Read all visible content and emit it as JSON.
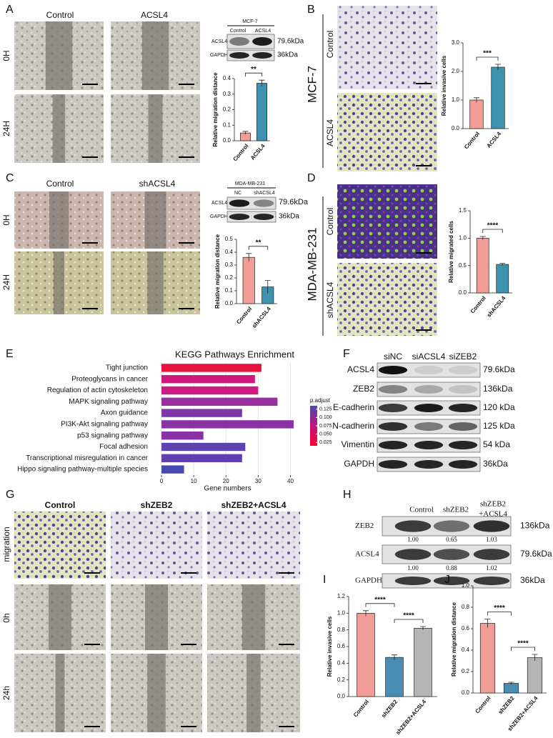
{
  "panels": {
    "A": {
      "letter": "A",
      "columns": [
        "Control",
        "ACSL4"
      ],
      "rows": [
        "0H",
        "24H"
      ],
      "blot": {
        "cell_line": "MCF-7",
        "lanes": [
          "Control",
          "ACSL4"
        ],
        "proteins": [
          "ACSL4",
          "GAPDH"
        ],
        "sizes": [
          "79.6kDa",
          "36kDa"
        ]
      }
    },
    "B": {
      "letter": "B",
      "cell_line": "MCF-7",
      "rows": [
        "Control",
        "ACSL4"
      ]
    },
    "C": {
      "letter": "C",
      "columns": [
        "Control",
        "shACSL4"
      ],
      "rows": [
        "0H",
        "24H"
      ],
      "blot": {
        "cell_line": "MDA-MB-231",
        "lanes": [
          "NC",
          "shACSL4"
        ],
        "proteins": [
          "ACSL4",
          "GAPDH"
        ],
        "sizes": [
          "79.6kDa",
          "36kDa"
        ]
      }
    },
    "D": {
      "letter": "D",
      "cell_line": "MDA-MB-231",
      "rows": [
        "Control",
        "shACSL4"
      ]
    },
    "E": {
      "letter": "E"
    },
    "F": {
      "letter": "F",
      "lanes": [
        "siNC",
        "siACSL4",
        "siZEB2"
      ],
      "proteins": [
        "ACSL4",
        "ZEB2",
        "E-cadherin",
        "N-cadherin",
        "Vimentin",
        "GAPDH"
      ],
      "sizes": [
        "79.6kDa",
        "136kDa",
        "120 kDa",
        "125 kDa",
        "54 kDa",
        "36kDa"
      ]
    },
    "G": {
      "letter": "G",
      "columns": [
        "Control",
        "shZEB2",
        "shZEB2+ACSL4"
      ],
      "rows": [
        "migration",
        "0h",
        "24h"
      ]
    },
    "H": {
      "letter": "H",
      "lanes": [
        [
          "Control"
        ],
        [
          "shZEB2"
        ],
        [
          "shZEB2",
          "+ACSL4"
        ]
      ],
      "proteins": [
        "ZEB2",
        "ACSL4",
        "GAPDH"
      ],
      "sizes": [
        "136kDa",
        "79.6kDa",
        "36kDa"
      ],
      "ratios": [
        [
          "1.00",
          "0.65",
          "1.03"
        ],
        [
          "1.00",
          "0.88",
          "1.02"
        ]
      ]
    },
    "I": {
      "letter": "I"
    },
    "J": {
      "letter": "J"
    }
  },
  "chart_data": [
    {
      "type": "bar",
      "ylabel": "Relative migration distance",
      "categories": [
        "Control",
        "ACSL4"
      ],
      "values": [
        0.05,
        0.37
      ],
      "errors": [
        0.01,
        0.02
      ],
      "colors": [
        "#f29c96",
        "#3d93ad"
      ],
      "ylim": [
        0,
        0.4
      ],
      "yticks": [
        {
          "value": 0,
          "label": "0.0"
        },
        0.1,
        0.2,
        0.3,
        0.4
      ],
      "annotations": [
        "**"
      ]
    },
    {
      "type": "bar",
      "ylabel": "Relative invasive cells",
      "categories": [
        "Control",
        "ACSL4"
      ],
      "values": [
        1.0,
        2.15
      ],
      "errors": [
        0.08,
        0.1
      ],
      "colors": [
        "#f29c96",
        "#3d93ad"
      ],
      "ylim": [
        0,
        3
      ],
      "yticks": [
        {
          "value": 0,
          "label": "0.0"
        },
        {
          "value": 1,
          "label": "1.0"
        },
        {
          "value": 2,
          "label": "2.0"
        },
        {
          "value": 3,
          "label": "3.0"
        }
      ],
      "annotations": [
        "***"
      ]
    },
    {
      "type": "bar",
      "ylabel": "Relative migration distance",
      "categories": [
        "Control",
        "shACSL4"
      ],
      "values": [
        0.36,
        0.13
      ],
      "errors": [
        0.03,
        0.05
      ],
      "colors": [
        "#f29c96",
        "#3d93ad"
      ],
      "ylim": [
        0,
        0.5
      ],
      "yticks": [
        {
          "value": 0,
          "label": "0.0"
        },
        0.1,
        0.2,
        0.3,
        0.4,
        0.5
      ],
      "annotations": [
        "**"
      ]
    },
    {
      "type": "bar",
      "ylabel": "Relative migrated cells",
      "categories": [
        "Control",
        "shACSL4"
      ],
      "values": [
        1.0,
        0.52
      ],
      "errors": [
        0.03,
        0.02
      ],
      "colors": [
        "#f29c96",
        "#3d93ad"
      ],
      "ylim": [
        0,
        1.5
      ],
      "yticks": [
        {
          "value": 0,
          "label": "0.0"
        },
        0.5,
        {
          "value": 1,
          "label": "1.0"
        },
        1.5
      ],
      "annotations": [
        "****"
      ]
    },
    {
      "type": "hbar",
      "title": "KEGG Pathways Enrichment",
      "xlabel": "Gene numbers",
      "categories": [
        "Tight junction",
        "Proteoglycans in cancer",
        "Regulation of  actin cytoskeleton",
        "MAPK signaling pathway",
        "Axon guidance",
        "PI3K-Akt signaling pathway",
        "p53 signaling pathway",
        "Focal adhesion",
        "Transcriptional misregulation in cancer",
        "Hippo signaling pathway-multiple species"
      ],
      "values": [
        31,
        29,
        30,
        36,
        25,
        41,
        13,
        26,
        25,
        7
      ],
      "colors": [
        "#e8123c",
        "#d0187c",
        "#cc1a82",
        "#9a2ea0",
        "#7c38a8",
        "#8a32a4",
        "#8a32a4",
        "#5c44b0",
        "#6040b0",
        "#4848b2"
      ],
      "label_colors": [
        "#e0201c",
        "#222222",
        "#222222",
        "#222222",
        "#222222",
        "#222222",
        "#222222",
        "#e0201c",
        "#222222",
        "#222222"
      ],
      "xlim": [
        -2,
        43
      ],
      "xticks": [
        0,
        10,
        20,
        30,
        40
      ],
      "grid": true,
      "colorbar": {
        "title": "p.adjust",
        "lim": [
          0.015,
          0.135
        ],
        "colors": [
          "#ff0033",
          "#c0147a",
          "#4b4aaa"
        ],
        "ticks": [
          0.125,
          {
            "value": 0.1,
            "label": "0.100"
          },
          0.075,
          {
            "value": 0.05,
            "label": "0.050"
          },
          0.025
        ]
      }
    },
    {
      "type": "bar",
      "ylabel": "Relative invasive cells",
      "categories": [
        "Control",
        "shZEB2",
        "shZEB2+ACSL4"
      ],
      "values": [
        1.0,
        0.47,
        0.82
      ],
      "errors": [
        0.03,
        0.03,
        0.02
      ],
      "colors": [
        "#f29c96",
        "#4a8db2",
        "#b4b4b4"
      ],
      "ylim": [
        0,
        1.2
      ],
      "yticks": [
        {
          "value": 0,
          "label": "0.0"
        },
        0.2,
        0.4,
        0.6,
        0.8,
        {
          "value": 1,
          "label": "1.0"
        },
        1.2
      ],
      "annotations": [
        "****",
        "****"
      ]
    },
    {
      "type": "bar",
      "ylabel": "Relative migration distance",
      "categories": [
        "Control",
        "shZEB2",
        "shZEB2+ACSL4"
      ],
      "values": [
        0.65,
        0.09,
        0.33
      ],
      "errors": [
        0.04,
        0.01,
        0.03
      ],
      "colors": [
        "#f29c96",
        "#4a8db2",
        "#b4b4b4"
      ],
      "ylim": [
        0,
        1.0
      ],
      "yticks": [
        {
          "value": 0,
          "label": "0.0"
        },
        0.2,
        0.4,
        0.6,
        0.8,
        {
          "value": 1,
          "label": "1.0"
        }
      ],
      "annotations": [
        "****",
        "****"
      ]
    }
  ]
}
